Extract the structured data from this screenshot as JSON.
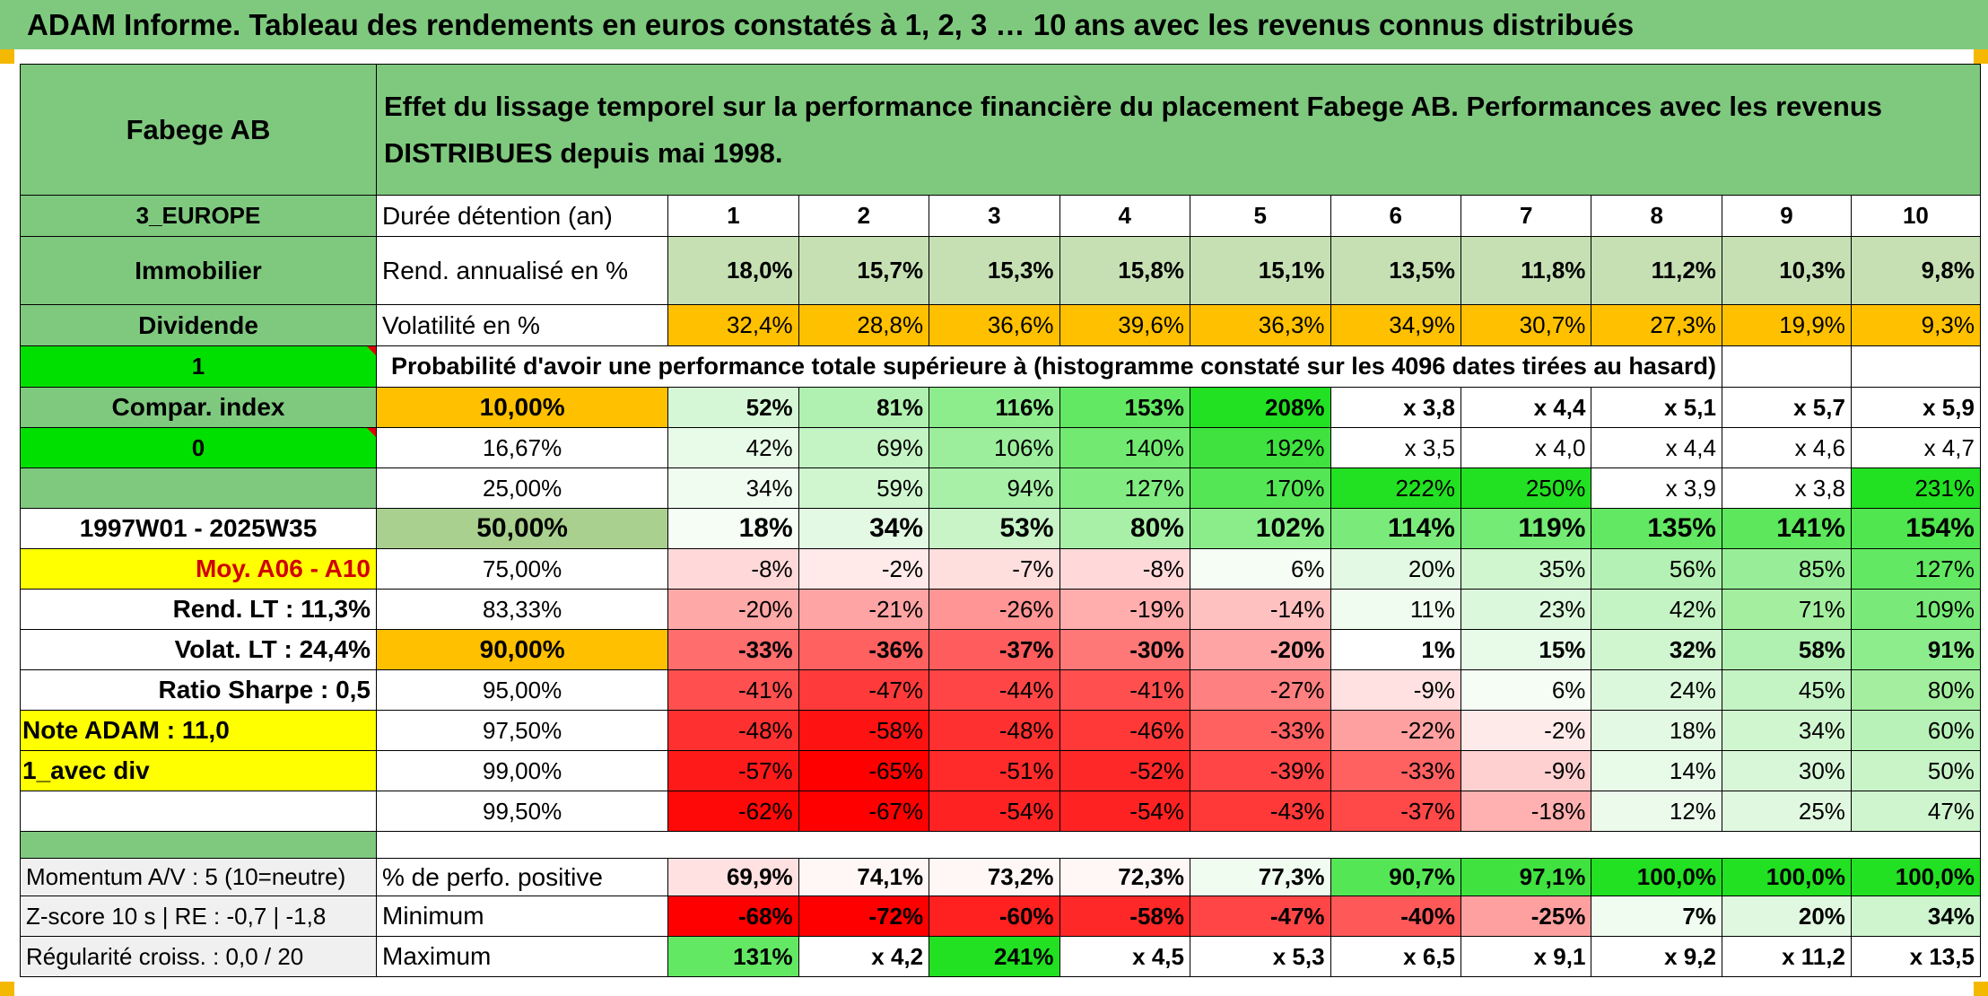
{
  "title": "ADAM Informe. Tableau des rendements en euros constatés à 1, 2, 3 … 10 ans avec les revenus connus distribués",
  "left": {
    "name": "Fabege AB",
    "region": "3_EUROPE",
    "sector": "Immobilier",
    "type": "Dividende",
    "one": "1",
    "compar": "Compar. index",
    "zero": "0",
    "period": "1997W01 - 2025W35",
    "moy": "Moy. A06 - A10",
    "rend_lt": "Rend. LT :   11,3%",
    "volat_lt": "Volat. LT :   24,4%",
    "sharpe": "Ratio Sharpe :    0,5",
    "note": "Note ADAM : 11,0",
    "avec_div": "1_avec div",
    "momentum": "Momentum A/V : 5 (10=neutre)",
    "zscore": "Z-score 10 s | RE : -0,7 | -1,8",
    "regularite": "Régularité croiss. : 0,0 / 20"
  },
  "header_text": "Effet du lissage temporel sur la performance financière du placement Fabege AB. Performances avec les revenus DISTRIBUES depuis mai 1998.",
  "duree_label": "Durée détention (an)",
  "years": [
    "1",
    "2",
    "3",
    "4",
    "5",
    "6",
    "7",
    "8",
    "9",
    "10"
  ],
  "rend_label": "Rend. annualisé en %",
  "rend": [
    "18,0%",
    "15,7%",
    "15,3%",
    "15,8%",
    "15,1%",
    "13,5%",
    "11,8%",
    "11,2%",
    "10,3%",
    "9,8%"
  ],
  "vol_label": "Volatilité en %",
  "vol": [
    "32,4%",
    "28,8%",
    "36,6%",
    "39,6%",
    "36,3%",
    "34,9%",
    "30,7%",
    "27,3%",
    "19,9%",
    "9,3%"
  ],
  "prob_label": "Probabilité d'avoir une performance totale supérieure à (histogramme constaté sur les 4096 dates tirées au hasard)",
  "quantiles": [
    {
      "p": "10,00%",
      "v": [
        "52%",
        "81%",
        "116%",
        "153%",
        "208%",
        "x 3,8",
        "x 4,4",
        "x 5,1",
        "x 5,7",
        "x 5,9"
      ]
    },
    {
      "p": "16,67%",
      "v": [
        "42%",
        "69%",
        "106%",
        "140%",
        "192%",
        "x 3,5",
        "x 4,0",
        "x 4,4",
        "x 4,6",
        "x 4,7"
      ]
    },
    {
      "p": "25,00%",
      "v": [
        "34%",
        "59%",
        "94%",
        "127%",
        "170%",
        "222%",
        "250%",
        "x 3,9",
        "x 3,8",
        "231%"
      ]
    },
    {
      "p": "50,00%",
      "v": [
        "18%",
        "34%",
        "53%",
        "80%",
        "102%",
        "114%",
        "119%",
        "135%",
        "141%",
        "154%"
      ]
    },
    {
      "p": "75,00%",
      "v": [
        "-8%",
        "-2%",
        "-7%",
        "-8%",
        "6%",
        "20%",
        "35%",
        "56%",
        "85%",
        "127%"
      ]
    },
    {
      "p": "83,33%",
      "v": [
        "-20%",
        "-21%",
        "-26%",
        "-19%",
        "-14%",
        "11%",
        "23%",
        "42%",
        "71%",
        "109%"
      ]
    },
    {
      "p": "90,00%",
      "v": [
        "-33%",
        "-36%",
        "-37%",
        "-30%",
        "-20%",
        "1%",
        "15%",
        "32%",
        "58%",
        "91%"
      ]
    },
    {
      "p": "95,00%",
      "v": [
        "-41%",
        "-47%",
        "-44%",
        "-41%",
        "-27%",
        "-9%",
        "6%",
        "24%",
        "45%",
        "80%"
      ]
    },
    {
      "p": "97,50%",
      "v": [
        "-48%",
        "-58%",
        "-48%",
        "-46%",
        "-33%",
        "-22%",
        "-2%",
        "18%",
        "34%",
        "60%"
      ]
    },
    {
      "p": "99,00%",
      "v": [
        "-57%",
        "-65%",
        "-51%",
        "-52%",
        "-39%",
        "-33%",
        "-9%",
        "14%",
        "30%",
        "50%"
      ]
    },
    {
      "p": "99,50%",
      "v": [
        "-62%",
        "-67%",
        "-54%",
        "-54%",
        "-43%",
        "-37%",
        "-18%",
        "12%",
        "25%",
        "47%"
      ]
    }
  ],
  "pos_label": "% de perfo. positive",
  "pos": [
    "69,9%",
    "74,1%",
    "73,2%",
    "72,3%",
    "77,3%",
    "90,7%",
    "97,1%",
    "100,0%",
    "100,0%",
    "100,0%"
  ],
  "min_label": "Minimum",
  "min": [
    "-68%",
    "-72%",
    "-60%",
    "-58%",
    "-47%",
    "-40%",
    "-25%",
    "7%",
    "20%",
    "34%"
  ],
  "max_label": "Maximum",
  "max": [
    "131%",
    "x 4,2",
    "241%",
    "x 4,5",
    "x 5,3",
    "x 6,5",
    "x 9,1",
    "x 9,2",
    "x 11,2",
    "x 13,5"
  ],
  "colors": {
    "header_green": "#7fc97f",
    "lime": "#00e000",
    "orange": "#ffc000",
    "yellow": "#ffff00",
    "label_red": "#d00000"
  },
  "cell_colors": {
    "rend": [
      "#c6e0b4",
      "#c6e0b4",
      "#c6e0b4",
      "#c6e0b4",
      "#c6e0b4",
      "#c6e0b4",
      "#c6e0b4",
      "#c6e0b4",
      "#c6e0b4",
      "#c6e0b4"
    ],
    "vol": [
      "#ffc000",
      "#ffc000",
      "#ffc000",
      "#ffc000",
      "#ffc000",
      "#ffc000",
      "#ffc000",
      "#ffc000",
      "#ffc000",
      "#ffc000"
    ],
    "quantiles": [
      [
        "#d6f7d6",
        "#b0f0b0",
        "#8ded8d",
        "#63e863",
        "#22e022",
        "#ffffff",
        "#ffffff",
        "#ffffff",
        "#ffffff",
        "#ffffff"
      ],
      [
        "#e8fae8",
        "#c4f3c4",
        "#9cee9c",
        "#72ea72",
        "#3fe23f",
        "#ffffff",
        "#ffffff",
        "#ffffff",
        "#ffffff",
        "#ffffff"
      ],
      [
        "#f0fcf0",
        "#d0f6d0",
        "#a8f0a8",
        "#82eb82",
        "#55e655",
        "#22e022",
        "#22e022",
        "#ffffff",
        "#ffffff",
        "#22e022"
      ],
      [
        "#f5fdf5",
        "#e4f9e4",
        "#c8f4c8",
        "#a8f0a8",
        "#8aed8a",
        "#7aeb7a",
        "#74eb74",
        "#62e862",
        "#5ce75c",
        "#4fe64f"
      ],
      [
        "#ffd9d9",
        "#ffe9e9",
        "#ffdede",
        "#ffd9d9",
        "#f5fdf5",
        "#e4f9e4",
        "#d0f6d0",
        "#b4f1b4",
        "#98ee98",
        "#62e862"
      ],
      [
        "#ffa8a8",
        "#ffa4a4",
        "#ff9595",
        "#ffadad",
        "#ffc0c0",
        "#f0fcf0",
        "#dcf8dc",
        "#c4f3c4",
        "#a4ef9f",
        "#79ea79"
      ],
      [
        "#ff6d6d",
        "#ff6060",
        "#ff5d5d",
        "#ff7878",
        "#ffa4a4",
        "#ffffff",
        "#e8fae8",
        "#d0f6d0",
        "#b0f0b0",
        "#8ded8d"
      ],
      [
        "#ff4f4f",
        "#ff3a3a",
        "#ff4545",
        "#ff4f4f",
        "#ff8080",
        "#ffe1e1",
        "#f5fdf5",
        "#dcf8dc",
        "#c4f3c4",
        "#a4ef9f"
      ],
      [
        "#ff3030",
        "#ff1212",
        "#ff3030",
        "#ff3838",
        "#ff6060",
        "#ffa0a0",
        "#ffeaea",
        "#e4f9e4",
        "#d0f6d0",
        "#b8f2b8"
      ],
      [
        "#ff1a1a",
        "#ff0000",
        "#ff2a2a",
        "#ff2828",
        "#ff4545",
        "#ff6060",
        "#ffd0d0",
        "#e8fae8",
        "#d8f7d8",
        "#c8f4c8"
      ],
      [
        "#ff0808",
        "#ff0000",
        "#ff2222",
        "#ff2222",
        "#ff3838",
        "#ff4848",
        "#ffb0b0",
        "#ecfaec",
        "#e0f8e0",
        "#cef5ce"
      ]
    ],
    "pos": [
      "#ffe1e1",
      "#fff6f6",
      "#fff6f6",
      "#fff6f6",
      "#f0fcf0",
      "#55e655",
      "#3fe23f",
      "#22e022",
      "#22e022",
      "#22e022"
    ],
    "min": [
      "#ff0000",
      "#ff0000",
      "#ff2020",
      "#ff2828",
      "#ff4545",
      "#ff5858",
      "#ffa0a0",
      "#f0fcf0",
      "#e0f8e0",
      "#cef5ce"
    ],
    "max": [
      "#63e863",
      "#ffffff",
      "#22e022",
      "#ffffff",
      "#ffffff",
      "#ffffff",
      "#ffffff",
      "#ffffff",
      "#ffffff",
      "#ffffff"
    ]
  }
}
